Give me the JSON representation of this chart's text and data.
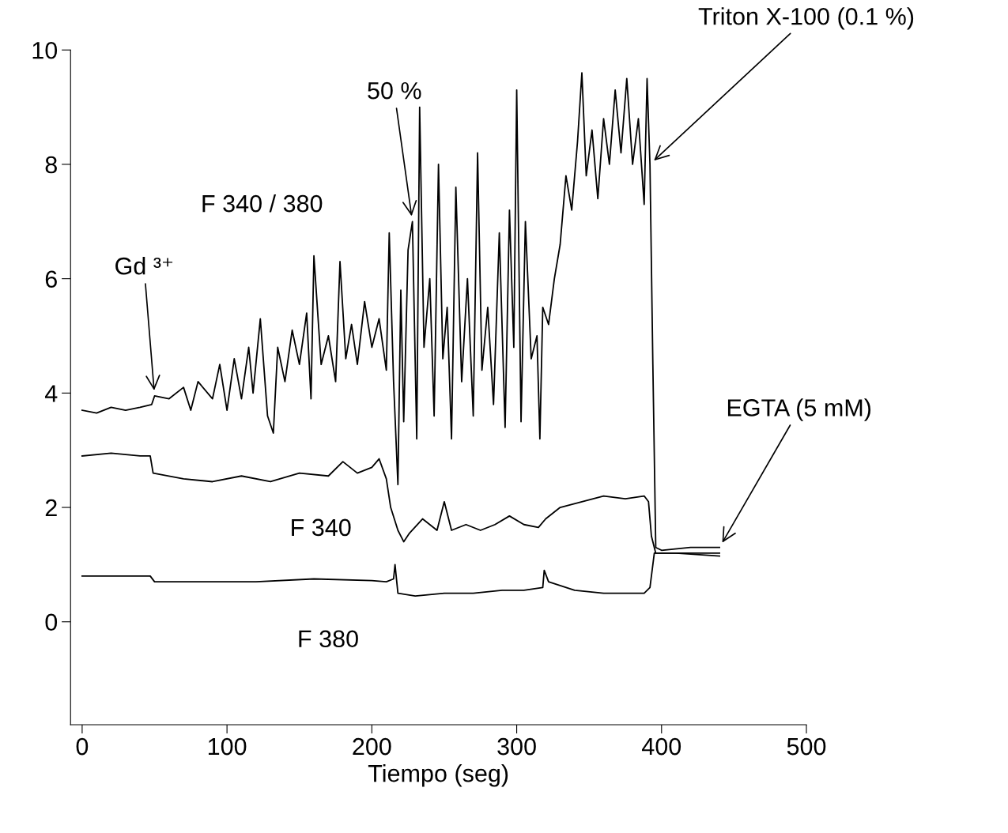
{
  "chart_data": {
    "type": "line",
    "xlabel": "Tiempo (seg)",
    "xlim": [
      -8,
      500
    ],
    "ylim": [
      -1.8,
      10
    ],
    "xticks": [
      0,
      100,
      200,
      300,
      400,
      500
    ],
    "yticks": [
      0,
      2,
      4,
      6,
      8,
      10
    ],
    "grid": false,
    "legend": false,
    "marker": "none",
    "line_style": "solid",
    "series": [
      {
        "name": "F 340 / 380",
        "color": "#000000",
        "x": [
          0,
          10,
          20,
          30,
          40,
          48,
          50,
          60,
          70,
          75,
          80,
          90,
          95,
          100,
          105,
          110,
          115,
          118,
          123,
          128,
          132,
          135,
          140,
          145,
          150,
          155,
          158,
          160,
          165,
          170,
          175,
          178,
          182,
          186,
          190,
          195,
          200,
          205,
          210,
          212,
          215,
          218,
          220,
          222,
          225,
          228,
          231,
          233,
          236,
          240,
          243,
          246,
          249,
          252,
          255,
          258,
          262,
          266,
          270,
          273,
          276,
          280,
          284,
          288,
          292,
          295,
          298,
          300,
          303,
          306,
          310,
          314,
          316,
          318,
          322,
          326,
          330,
          334,
          338,
          342,
          345,
          348,
          352,
          356,
          360,
          364,
          368,
          372,
          376,
          380,
          384,
          388,
          390,
          392,
          394,
          396,
          400,
          420,
          440
        ],
        "values": [
          3.7,
          3.65,
          3.75,
          3.7,
          3.75,
          3.8,
          3.95,
          3.9,
          4.1,
          3.7,
          4.2,
          3.9,
          4.5,
          3.7,
          4.6,
          3.9,
          4.8,
          4.0,
          5.3,
          3.6,
          3.3,
          4.8,
          4.2,
          5.1,
          4.5,
          5.4,
          3.9,
          6.4,
          4.5,
          5.0,
          4.2,
          6.3,
          4.6,
          5.2,
          4.5,
          5.6,
          4.8,
          5.3,
          4.4,
          6.8,
          4.2,
          2.4,
          5.8,
          3.5,
          6.5,
          7.0,
          3.2,
          9.0,
          4.8,
          6.0,
          3.6,
          8.0,
          4.6,
          5.5,
          3.2,
          7.6,
          4.2,
          6.0,
          3.6,
          8.2,
          4.4,
          5.5,
          3.8,
          6.8,
          3.4,
          7.2,
          4.8,
          9.3,
          3.5,
          7.0,
          4.6,
          5.0,
          3.2,
          5.5,
          5.2,
          6.0,
          6.6,
          7.8,
          7.2,
          8.4,
          9.6,
          7.8,
          8.6,
          7.4,
          8.8,
          8.0,
          9.3,
          8.2,
          9.5,
          8.0,
          8.8,
          7.3,
          9.5,
          8.0,
          4.5,
          1.3,
          1.25,
          1.3,
          1.3
        ]
      },
      {
        "name": "F 340",
        "color": "#000000",
        "x": [
          0,
          20,
          40,
          47,
          49,
          70,
          90,
          110,
          130,
          150,
          170,
          180,
          190,
          200,
          205,
          210,
          213,
          218,
          222,
          226,
          235,
          245,
          250,
          255,
          265,
          275,
          285,
          295,
          305,
          315,
          320,
          330,
          345,
          360,
          375,
          388,
          391,
          393,
          396,
          410,
          440
        ],
        "values": [
          2.9,
          2.95,
          2.9,
          2.9,
          2.6,
          2.5,
          2.45,
          2.55,
          2.45,
          2.6,
          2.55,
          2.8,
          2.6,
          2.7,
          2.85,
          2.5,
          2.0,
          1.6,
          1.4,
          1.55,
          1.8,
          1.6,
          2.1,
          1.6,
          1.7,
          1.6,
          1.7,
          1.85,
          1.7,
          1.65,
          1.8,
          2.0,
          2.1,
          2.2,
          2.15,
          2.2,
          2.1,
          1.5,
          1.2,
          1.2,
          1.15
        ]
      },
      {
        "name": "F 380",
        "color": "#000000",
        "x": [
          0,
          20,
          47,
          50,
          80,
          120,
          160,
          200,
          210,
          215,
          216,
          218,
          230,
          250,
          270,
          290,
          305,
          318,
          319,
          322,
          340,
          360,
          388,
          392,
          395,
          400,
          440
        ],
        "values": [
          0.8,
          0.8,
          0.8,
          0.7,
          0.7,
          0.7,
          0.75,
          0.72,
          0.7,
          0.75,
          1.0,
          0.5,
          0.45,
          0.5,
          0.5,
          0.55,
          0.55,
          0.6,
          0.9,
          0.7,
          0.55,
          0.5,
          0.5,
          0.6,
          1.2,
          1.2,
          1.2
        ]
      }
    ],
    "annotations": [
      {
        "text": "Gd ³⁺",
        "x": 50,
        "y": 3.95
      },
      {
        "text": "50 %",
        "x": 228,
        "y": 7.0
      },
      {
        "text": "Triton X-100 (0.1 %)",
        "x": 392,
        "y": 8.0
      },
      {
        "text": "EGTA (5 mM)",
        "x": 440,
        "y": 1.3
      }
    ]
  }
}
